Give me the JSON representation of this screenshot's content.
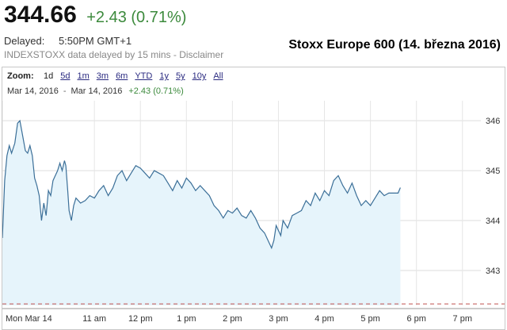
{
  "quote": {
    "price": "344.66",
    "change": "+2.43 (0.71%)",
    "delayed_label": "Delayed:",
    "delayed_time": "5:50PM GMT+1",
    "source_text": "INDEXSTOXX data delayed by 15 mins - ",
    "disclaimer": "Disclaimer"
  },
  "caption": "Stoxx Europe 600 (14. března 2016)",
  "zoom": {
    "label": "Zoom:",
    "options": [
      "1d",
      "5d",
      "1m",
      "3m",
      "6m",
      "YTD",
      "1y",
      "5y",
      "10y",
      "All"
    ],
    "active": "1d"
  },
  "range": {
    "from": "Mar 14, 2016",
    "to": "Mar 14, 2016",
    "change": "+2.43 (0.71%)"
  },
  "colors": {
    "line": "#3b6f98",
    "fill": "#e6f4fb",
    "positive": "#3c8a3c",
    "link": "#2a2a80",
    "reference_line": "#c0504d"
  },
  "chart_data": {
    "type": "area",
    "title": "",
    "xlabel": "",
    "ylabel": "",
    "ylim": [
      342.3,
      346.4
    ],
    "y_ticks": [
      343,
      344,
      345,
      346
    ],
    "x_ticks": [
      "Mon Mar 14",
      "11 am",
      "12 pm",
      "1 pm",
      "2 pm",
      "3 pm",
      "4 pm",
      "5 pm",
      "6 pm",
      "7 pm"
    ],
    "x_tick_hours": [
      9,
      11,
      12,
      13,
      14,
      15,
      16,
      17,
      18,
      19
    ],
    "x_domain_hours": [
      9,
      19.4
    ],
    "reference_value": 342.33,
    "grid": true,
    "series": [
      {
        "values": [
          [
            9.0,
            343.65
          ],
          [
            9.05,
            344.8
          ],
          [
            9.1,
            345.3
          ],
          [
            9.15,
            345.5
          ],
          [
            9.2,
            345.35
          ],
          [
            9.27,
            345.55
          ],
          [
            9.33,
            345.95
          ],
          [
            9.38,
            346.0
          ],
          [
            9.43,
            345.75
          ],
          [
            9.5,
            345.4
          ],
          [
            9.55,
            345.35
          ],
          [
            9.6,
            345.5
          ],
          [
            9.65,
            345.3
          ],
          [
            9.7,
            344.85
          ],
          [
            9.75,
            344.7
          ],
          [
            9.8,
            344.5
          ],
          [
            9.85,
            344.0
          ],
          [
            9.9,
            344.35
          ],
          [
            9.95,
            344.1
          ],
          [
            10.0,
            344.6
          ],
          [
            10.05,
            344.5
          ],
          [
            10.1,
            344.8
          ],
          [
            10.15,
            344.9
          ],
          [
            10.2,
            345.0
          ],
          [
            10.25,
            345.15
          ],
          [
            10.3,
            345.0
          ],
          [
            10.35,
            345.2
          ],
          [
            10.38,
            345.1
          ],
          [
            10.42,
            344.6
          ],
          [
            10.45,
            344.2
          ],
          [
            10.5,
            344.0
          ],
          [
            10.55,
            344.3
          ],
          [
            10.6,
            344.45
          ],
          [
            10.7,
            344.35
          ],
          [
            10.8,
            344.4
          ],
          [
            10.9,
            344.5
          ],
          [
            11.0,
            344.45
          ],
          [
            11.1,
            344.6
          ],
          [
            11.2,
            344.7
          ],
          [
            11.3,
            344.5
          ],
          [
            11.4,
            344.65
          ],
          [
            11.5,
            344.9
          ],
          [
            11.6,
            345.0
          ],
          [
            11.7,
            344.8
          ],
          [
            11.8,
            344.95
          ],
          [
            11.9,
            345.1
          ],
          [
            12.0,
            345.05
          ],
          [
            12.1,
            344.95
          ],
          [
            12.2,
            344.85
          ],
          [
            12.3,
            345.0
          ],
          [
            12.4,
            344.95
          ],
          [
            12.5,
            344.9
          ],
          [
            12.6,
            344.75
          ],
          [
            12.7,
            344.6
          ],
          [
            12.8,
            344.8
          ],
          [
            12.9,
            344.65
          ],
          [
            13.0,
            344.85
          ],
          [
            13.1,
            344.75
          ],
          [
            13.2,
            344.6
          ],
          [
            13.3,
            344.7
          ],
          [
            13.4,
            344.6
          ],
          [
            13.5,
            344.5
          ],
          [
            13.6,
            344.3
          ],
          [
            13.7,
            344.2
          ],
          [
            13.8,
            344.05
          ],
          [
            13.9,
            344.2
          ],
          [
            14.0,
            344.15
          ],
          [
            14.1,
            344.25
          ],
          [
            14.2,
            344.1
          ],
          [
            14.3,
            344.05
          ],
          [
            14.4,
            344.2
          ],
          [
            14.5,
            344.05
          ],
          [
            14.6,
            343.85
          ],
          [
            14.7,
            343.75
          ],
          [
            14.8,
            343.55
          ],
          [
            14.85,
            343.45
          ],
          [
            14.9,
            343.6
          ],
          [
            14.95,
            343.9
          ],
          [
            15.0,
            343.8
          ],
          [
            15.05,
            343.7
          ],
          [
            15.1,
            344.0
          ],
          [
            15.2,
            343.85
          ],
          [
            15.3,
            344.1
          ],
          [
            15.4,
            344.15
          ],
          [
            15.5,
            344.2
          ],
          [
            15.6,
            344.4
          ],
          [
            15.7,
            344.3
          ],
          [
            15.8,
            344.55
          ],
          [
            15.9,
            344.4
          ],
          [
            16.0,
            344.6
          ],
          [
            16.1,
            344.5
          ],
          [
            16.2,
            344.8
          ],
          [
            16.3,
            344.9
          ],
          [
            16.4,
            344.7
          ],
          [
            16.5,
            344.55
          ],
          [
            16.6,
            344.75
          ],
          [
            16.7,
            344.5
          ],
          [
            16.8,
            344.3
          ],
          [
            16.9,
            344.4
          ],
          [
            17.0,
            344.3
          ],
          [
            17.1,
            344.45
          ],
          [
            17.2,
            344.6
          ],
          [
            17.3,
            344.5
          ],
          [
            17.4,
            344.55
          ],
          [
            17.5,
            344.55
          ],
          [
            17.6,
            344.55
          ],
          [
            17.65,
            344.66
          ]
        ]
      }
    ]
  }
}
